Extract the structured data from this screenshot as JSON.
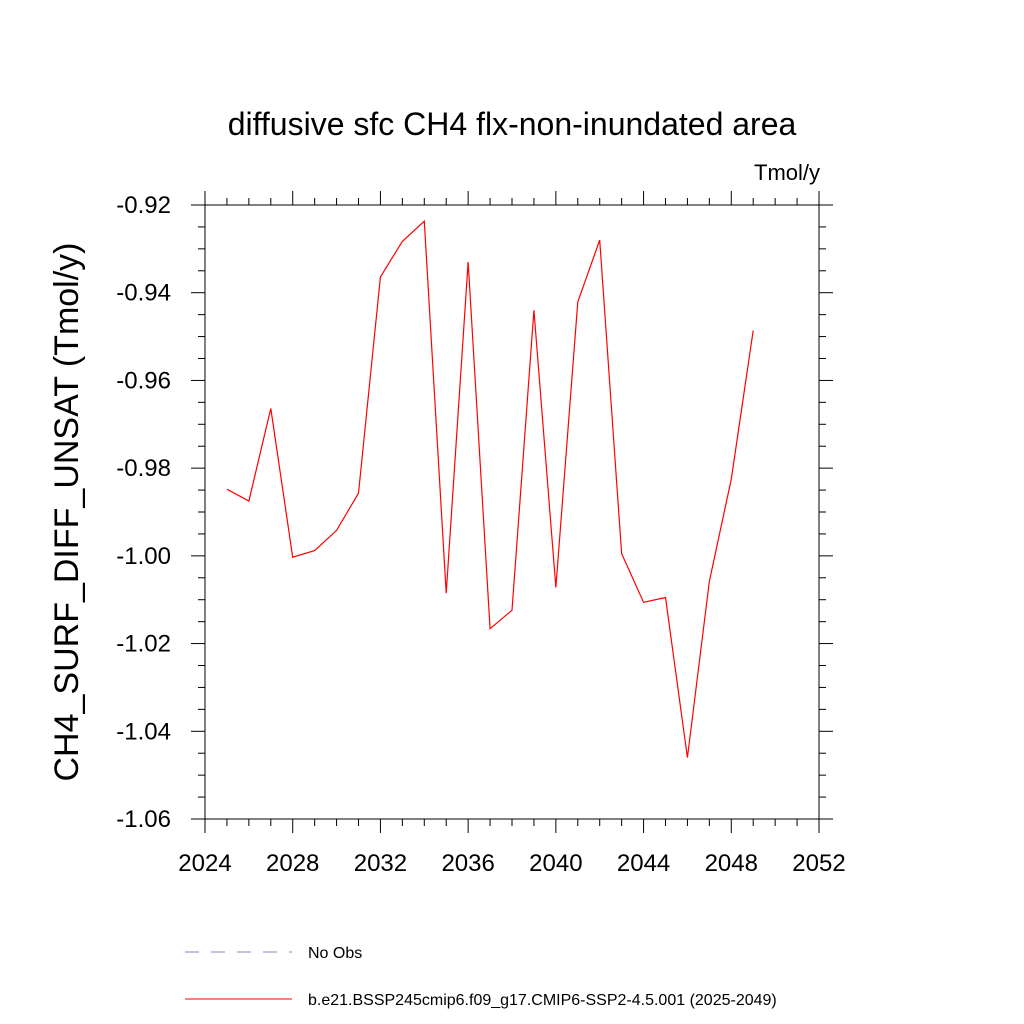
{
  "chart_data": {
    "type": "line",
    "title": "diffusive sfc CH4 flx-non-inundated area",
    "units": "Tmol/y",
    "xlabel": "",
    "ylabel": "CH4_SURF_DIFF_UNSAT  (Tmol/y)",
    "xlim": [
      2024,
      2052
    ],
    "ylim": [
      -1.06,
      -0.92
    ],
    "xticks": [
      2024,
      2028,
      2032,
      2036,
      2040,
      2044,
      2048,
      2052
    ],
    "xtick_labels": [
      "2024",
      "2028",
      "2032",
      "2036",
      "2040",
      "2044",
      "2048",
      "2052"
    ],
    "yticks": [
      -0.92,
      -0.94,
      -0.96,
      -0.98,
      -1.0,
      -1.02,
      -1.04,
      -1.06
    ],
    "ytick_labels": [
      "-0.92",
      "-0.94",
      "-0.96",
      "-0.98",
      "-1.00",
      "-1.02",
      "-1.04",
      "-1.06"
    ],
    "grid": false,
    "legend_position": "bottom",
    "series": [
      {
        "name": "No Obs",
        "color": "#8080c0",
        "style": "dashed",
        "x": [],
        "y": []
      },
      {
        "name": "b.e21.BSSP245cmip6.f09_g17.CMIP6-SSP2-4.5.001 (2025-2049)",
        "color": "#ff0000",
        "style": "solid",
        "x": [
          2025,
          2026,
          2027,
          2028,
          2029,
          2030,
          2031,
          2032,
          2033,
          2034,
          2035,
          2036,
          2037,
          2038,
          2039,
          2040,
          2041,
          2042,
          2043,
          2044,
          2045,
          2046,
          2047,
          2048,
          2049
        ],
        "y": [
          -0.9848,
          -0.9875,
          -0.9664,
          -1.0003,
          -0.9988,
          -0.9942,
          -0.9857,
          -0.9364,
          -0.9283,
          -0.9237,
          -1.0085,
          -0.933,
          -1.0166,
          -1.0124,
          -0.944,
          -1.0072,
          -0.9421,
          -0.928,
          -0.9995,
          -1.0106,
          -1.0095,
          -1.046,
          -1.0058,
          -0.9825,
          -0.9486
        ]
      }
    ]
  }
}
